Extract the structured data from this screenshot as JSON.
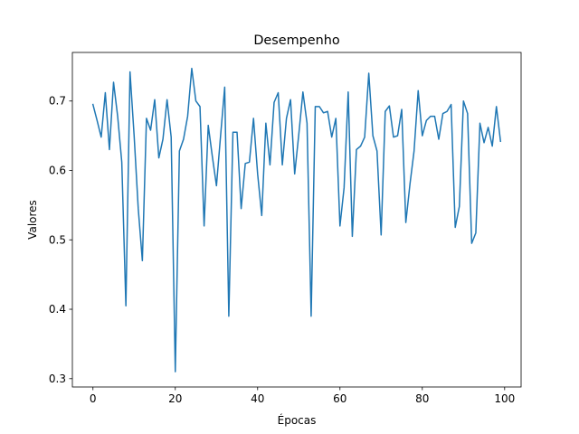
{
  "chart_data": {
    "type": "line",
    "title": "Desempenho",
    "xlabel": "Épocas",
    "ylabel": "Valores",
    "xlim": [
      -5,
      104
    ],
    "ylim": [
      0.288,
      0.77
    ],
    "x_ticks": [
      0,
      20,
      40,
      60,
      80,
      100
    ],
    "y_ticks": [
      0.3,
      0.4,
      0.5,
      0.6,
      0.7
    ],
    "y_tick_labels": [
      "0.3",
      "0.4",
      "0.5",
      "0.6",
      "0.7"
    ],
    "grid": false,
    "line_color": "#1f77b4",
    "series": [
      {
        "values": [
          0.695,
          0.672,
          0.648,
          0.712,
          0.63,
          0.727,
          0.678,
          0.612,
          0.405,
          0.742,
          0.65,
          0.545,
          0.47,
          0.675,
          0.658,
          0.702,
          0.618,
          0.645,
          0.702,
          0.648,
          0.31,
          0.628,
          0.645,
          0.678,
          0.747,
          0.7,
          0.692,
          0.52,
          0.665,
          0.62,
          0.578,
          0.65,
          0.72,
          0.39,
          0.655,
          0.655,
          0.545,
          0.61,
          0.612,
          0.675,
          0.595,
          0.535,
          0.668,
          0.608,
          0.698,
          0.712,
          0.608,
          0.675,
          0.702,
          0.595,
          0.652,
          0.713,
          0.668,
          0.39,
          0.692,
          0.692,
          0.683,
          0.685,
          0.648,
          0.675,
          0.52,
          0.575,
          0.713,
          0.505,
          0.63,
          0.635,
          0.648,
          0.74,
          0.65,
          0.628,
          0.507,
          0.685,
          0.693,
          0.648,
          0.65,
          0.688,
          0.525,
          0.58,
          0.628,
          0.715,
          0.65,
          0.672,
          0.678,
          0.678,
          0.645,
          0.682,
          0.685,
          0.695,
          0.518,
          0.548,
          0.7,
          0.682,
          0.495,
          0.51,
          0.668,
          0.64,
          0.662,
          0.635,
          0.692,
          0.642
        ]
      }
    ]
  }
}
